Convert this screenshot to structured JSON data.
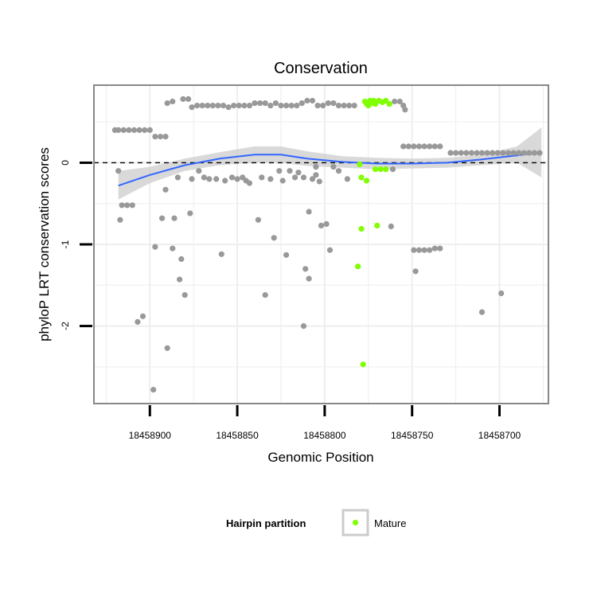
{
  "chart_data": {
    "type": "scatter",
    "title": "Conservation",
    "xlabel": "Genomic Position",
    "ylabel": "phyloP LRT conservation scores",
    "x_reversed": true,
    "xlim": [
      18458932,
      18458672
    ],
    "ylim": [
      -2.95,
      0.95
    ],
    "x_ticks": [
      18458900,
      18458850,
      18458800,
      18458750,
      18458700
    ],
    "y_ticks": [
      0,
      -1,
      -2
    ],
    "grid": true,
    "reference_line": {
      "y": 0,
      "style": "dashed",
      "color": "#000000"
    },
    "legend": {
      "title": "Hairpin partition",
      "placement": "bottom",
      "entries": [
        {
          "label": "Mature",
          "color": "#7fff00"
        }
      ]
    },
    "colors": {
      "other": "#999999",
      "mature": "#7fff00",
      "smooth": "#3366ff",
      "ribbon": "#cccccc",
      "panel_bg": "#ffffff",
      "grid": "#eeeeee"
    },
    "series": [
      {
        "points": [
          [
            18458918,
            -0.1
          ],
          [
            18458917,
            -0.7
          ],
          [
            18458916,
            -0.52
          ],
          [
            18458913,
            -0.52
          ],
          [
            18458910,
            -0.52
          ],
          [
            18458907,
            -1.95
          ],
          [
            18458904,
            -1.88
          ],
          [
            18458898,
            -2.78
          ],
          [
            18458897,
            -1.03
          ],
          [
            18458893,
            -0.68
          ],
          [
            18458891,
            -0.33
          ],
          [
            18458890,
            -2.27
          ],
          [
            18458887,
            -1.05
          ],
          [
            18458886,
            -0.68
          ],
          [
            18458884,
            -0.18
          ],
          [
            18458883,
            -1.43
          ],
          [
            18458882,
            -1.18
          ],
          [
            18458880,
            -1.62
          ],
          [
            18458877,
            -0.62
          ],
          [
            18458876,
            -0.2
          ],
          [
            18458872,
            -0.1
          ],
          [
            18458869,
            -0.18
          ],
          [
            18458866,
            -0.2
          ],
          [
            18458862,
            -0.2
          ],
          [
            18458859,
            -1.12
          ],
          [
            18458857,
            -0.22
          ],
          [
            18458853,
            -0.18
          ],
          [
            18458850,
            -0.2
          ],
          [
            18458847,
            -0.18
          ],
          [
            18458845,
            -0.22
          ],
          [
            18458843,
            -0.25
          ],
          [
            18458838,
            -0.7
          ],
          [
            18458836,
            -0.18
          ],
          [
            18458834,
            -1.62
          ],
          [
            18458831,
            -0.2
          ],
          [
            18458829,
            -0.92
          ],
          [
            18458826,
            -0.1
          ],
          [
            18458824,
            -0.22
          ],
          [
            18458822,
            -1.13
          ],
          [
            18458820,
            -0.1
          ],
          [
            18458817,
            -0.18
          ],
          [
            18458815,
            -0.12
          ],
          [
            18458812,
            -0.18
          ],
          [
            18458809,
            -0.6
          ],
          [
            18458807,
            -0.2
          ],
          [
            18458805,
            -0.15
          ],
          [
            18458803,
            -0.23
          ],
          [
            18458812,
            -2.0
          ],
          [
            18458811,
            -1.3
          ],
          [
            18458809,
            -1.42
          ],
          [
            18458805,
            -0.05
          ],
          [
            18458802,
            -0.77
          ],
          [
            18458799,
            -0.75
          ],
          [
            18458797,
            -1.07
          ],
          [
            18458795,
            -0.05
          ],
          [
            18458792,
            -0.1
          ],
          [
            18458787,
            -0.2
          ],
          [
            18458762,
            -0.78
          ],
          [
            18458761,
            -0.08
          ],
          [
            18458749,
            -1.07
          ],
          [
            18458746,
            -1.07
          ],
          [
            18458743,
            -1.07
          ],
          [
            18458740,
            -1.07
          ],
          [
            18458737,
            -1.05
          ],
          [
            18458734,
            -1.05
          ],
          [
            18458748,
            -1.33
          ],
          [
            18458710,
            -1.83
          ],
          [
            18458699,
            -1.6
          ],
          [
            18458920,
            0.4
          ],
          [
            18458918,
            0.4
          ],
          [
            18458915,
            0.4
          ],
          [
            18458912,
            0.4
          ],
          [
            18458909,
            0.4
          ],
          [
            18458906,
            0.4
          ],
          [
            18458903,
            0.4
          ],
          [
            18458900,
            0.4
          ],
          [
            18458897,
            0.32
          ],
          [
            18458894,
            0.32
          ],
          [
            18458891,
            0.32
          ],
          [
            18458890,
            0.73
          ],
          [
            18458887,
            0.75
          ],
          [
            18458881,
            0.78
          ],
          [
            18458878,
            0.78
          ],
          [
            18458876,
            0.68
          ],
          [
            18458873,
            0.7
          ],
          [
            18458870,
            0.7
          ],
          [
            18458867,
            0.7
          ],
          [
            18458864,
            0.7
          ],
          [
            18458861,
            0.7
          ],
          [
            18458858,
            0.7
          ],
          [
            18458855,
            0.68
          ],
          [
            18458852,
            0.7
          ],
          [
            18458849,
            0.7
          ],
          [
            18458846,
            0.7
          ],
          [
            18458843,
            0.7
          ],
          [
            18458840,
            0.73
          ],
          [
            18458837,
            0.73
          ],
          [
            18458834,
            0.73
          ],
          [
            18458831,
            0.7
          ],
          [
            18458828,
            0.73
          ],
          [
            18458825,
            0.7
          ],
          [
            18458822,
            0.7
          ],
          [
            18458819,
            0.7
          ],
          [
            18458816,
            0.7
          ],
          [
            18458813,
            0.73
          ],
          [
            18458810,
            0.76
          ],
          [
            18458807,
            0.76
          ],
          [
            18458804,
            0.7
          ],
          [
            18458801,
            0.7
          ],
          [
            18458798,
            0.73
          ],
          [
            18458795,
            0.73
          ],
          [
            18458792,
            0.7
          ],
          [
            18458789,
            0.7
          ],
          [
            18458786,
            0.7
          ],
          [
            18458783,
            0.7
          ],
          [
            18458760,
            0.75
          ],
          [
            18458757,
            0.75
          ],
          [
            18458755,
            0.7
          ],
          [
            18458754,
            0.65
          ],
          [
            18458755,
            0.2
          ],
          [
            18458752,
            0.2
          ],
          [
            18458749,
            0.2
          ],
          [
            18458746,
            0.2
          ],
          [
            18458743,
            0.2
          ],
          [
            18458740,
            0.2
          ],
          [
            18458737,
            0.2
          ],
          [
            18458734,
            0.2
          ],
          [
            18458728,
            0.12
          ],
          [
            18458725,
            0.12
          ],
          [
            18458722,
            0.12
          ],
          [
            18458719,
            0.12
          ],
          [
            18458716,
            0.12
          ],
          [
            18458713,
            0.12
          ],
          [
            18458710,
            0.12
          ],
          [
            18458707,
            0.12
          ],
          [
            18458704,
            0.12
          ],
          [
            18458701,
            0.12
          ],
          [
            18458698,
            0.12
          ],
          [
            18458695,
            0.12
          ],
          [
            18458692,
            0.12
          ],
          [
            18458689,
            0.12
          ],
          [
            18458686,
            0.12
          ],
          [
            18458683,
            0.12
          ],
          [
            18458680,
            0.12
          ],
          [
            18458677,
            0.12
          ]
        ]
      },
      {
        "name": "Mature",
        "points": [
          [
            18458780,
            -0.02
          ],
          [
            18458779,
            -0.18
          ],
          [
            18458776,
            -0.22
          ],
          [
            18458779,
            -0.81
          ],
          [
            18458770,
            -0.77
          ],
          [
            18458781,
            -1.27
          ],
          [
            18458778,
            -2.47
          ],
          [
            18458771,
            -0.08
          ],
          [
            18458768,
            -0.08
          ],
          [
            18458765,
            -0.08
          ],
          [
            18458777,
            0.75
          ],
          [
            18458775,
            0.7
          ],
          [
            18458773,
            0.73
          ],
          [
            18458771,
            0.72
          ],
          [
            18458769,
            0.76
          ],
          [
            18458767,
            0.74
          ],
          [
            18458765,
            0.76
          ],
          [
            18458763,
            0.72
          ],
          [
            18458776,
            0.72
          ],
          [
            18458774,
            0.76
          ],
          [
            18458772,
            0.76
          ]
        ]
      }
    ],
    "smooth": {
      "x": [
        18458918,
        18458900,
        18458880,
        18458860,
        18458840,
        18458825,
        18458810,
        18458790,
        18458770,
        18458750,
        18458730,
        18458710,
        18458690,
        18458676
      ],
      "y": [
        -0.28,
        -0.15,
        -0.03,
        0.05,
        0.1,
        0.1,
        0.05,
        0.01,
        -0.01,
        -0.01,
        0.0,
        0.04,
        0.09,
        0.13
      ],
      "lower": [
        -0.45,
        -0.25,
        -0.1,
        -0.03,
        0.0,
        0.0,
        -0.04,
        -0.06,
        -0.08,
        -0.07,
        -0.06,
        -0.03,
        0.0,
        -0.18
      ],
      "upper": [
        -0.1,
        -0.05,
        0.05,
        0.13,
        0.2,
        0.2,
        0.14,
        0.08,
        0.06,
        0.05,
        0.06,
        0.1,
        0.2,
        0.43
      ]
    }
  }
}
